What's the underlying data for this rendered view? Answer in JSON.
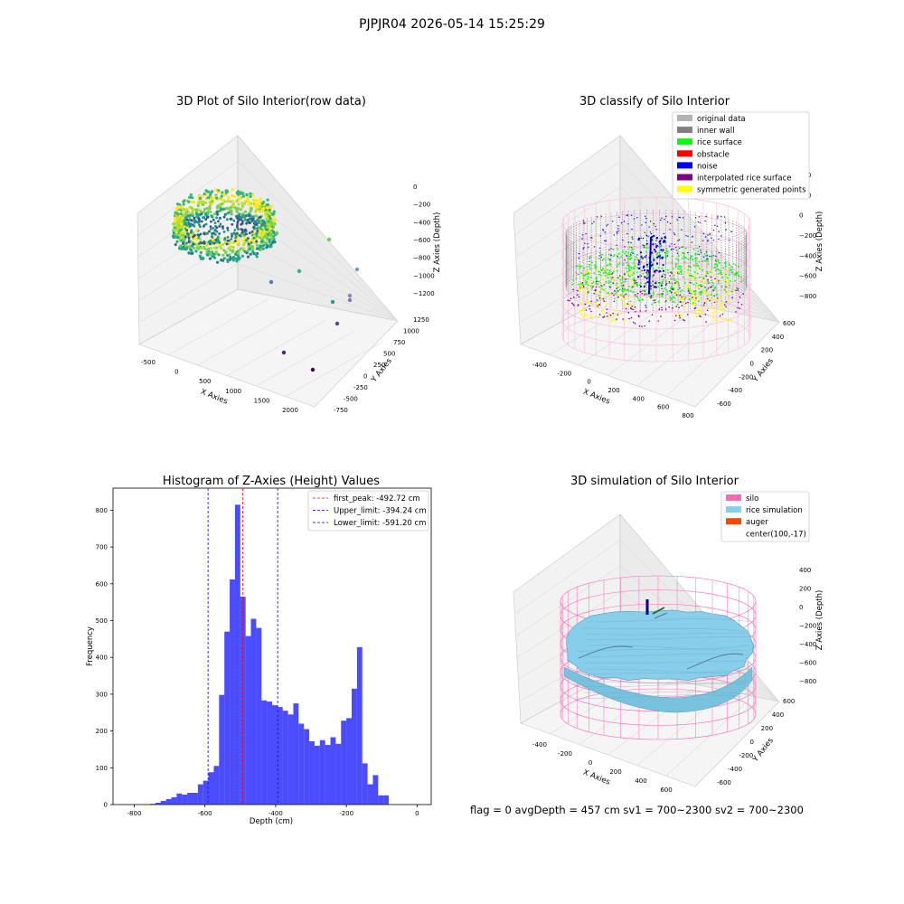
{
  "figure": {
    "suptitle": "PJPJR04 2026-05-14 15:25:29",
    "footer": "flag = 0     avgDepth = 457 cm  sv1 = 700~2300  sv2 = 700~2300"
  },
  "panels": {
    "raw": {
      "title": "3D Plot of Silo Interior(row data)",
      "xlabel": "X Axies",
      "ylabel": "Y Axies",
      "zlabel": "Z Axies (Depth)",
      "xticks": [
        "-500",
        "0",
        "500",
        "1000",
        "1500",
        "2000"
      ],
      "yticks": [
        "-750",
        "-500",
        "-250",
        "0",
        "250",
        "500",
        "750",
        "1000",
        "1250"
      ],
      "zticks": [
        "0",
        "−200",
        "−400",
        "−600",
        "−800",
        "−1000",
        "−1200"
      ]
    },
    "classify": {
      "title": "3D classify of Silo Interior",
      "xlabel": "X Axies",
      "ylabel": "Y Axies",
      "zlabel": "Z Axies (Depth)",
      "xticks": [
        "-400",
        "-200",
        "0",
        "200",
        "400",
        "600",
        "800"
      ],
      "yticks": [
        "-600",
        "-400",
        "-200",
        "0",
        "200",
        "400",
        "600"
      ],
      "zticks": [
        "400",
        "200",
        "0",
        "−200",
        "−400",
        "−600",
        "−800"
      ],
      "legend": [
        {
          "label": "original data",
          "color": "#b3b3b3"
        },
        {
          "label": "inner wall",
          "color": "#808080"
        },
        {
          "label": "rice surface",
          "color": "#00ff00"
        },
        {
          "label": "obstacle",
          "color": "#ff0000"
        },
        {
          "label": "noise",
          "color": "#0000ff"
        },
        {
          "label": "interpolated rice surface",
          "color": "#800080"
        },
        {
          "label": "symmetric generated points",
          "color": "#ffff00"
        }
      ]
    },
    "simulation": {
      "title": "3D simulation of Silo Interior",
      "xlabel": "X Axies",
      "ylabel": "Y Axies",
      "zlabel": "Z Axies (Depth)",
      "xticks": [
        "-400",
        "-200",
        "0",
        "200",
        "400",
        "600"
      ],
      "yticks": [
        "-600",
        "-400",
        "-200",
        "0",
        "200",
        "400",
        "600"
      ],
      "zticks": [
        "400",
        "200",
        "0",
        "−200",
        "−400",
        "−600",
        "−800"
      ],
      "legend": [
        {
          "label": "silo",
          "color": "#ff69b4"
        },
        {
          "label": "rice simulation",
          "color": "#87ceeb"
        },
        {
          "label": "auger",
          "color": "#ff4500"
        },
        {
          "label": "center(100,-17)",
          "color": "none"
        }
      ]
    }
  },
  "chart_data": {
    "type": "bar",
    "title": "Histogram of Z-Axies (Height) Values",
    "xlabel": "Depth (cm)",
    "ylabel": "Frequency",
    "xlim": [
      -860,
      40
    ],
    "ylim": [
      0,
      860
    ],
    "xticks": [
      -800,
      -600,
      -400,
      -200,
      0
    ],
    "yticks": [
      0,
      100,
      200,
      300,
      400,
      500,
      600,
      700,
      800
    ],
    "bar_color": "#0000ff",
    "bins": [
      [
        -755,
        -740,
        2
      ],
      [
        -740,
        -725,
        5
      ],
      [
        -725,
        -710,
        10
      ],
      [
        -710,
        -695,
        15
      ],
      [
        -695,
        -680,
        20
      ],
      [
        -680,
        -665,
        30
      ],
      [
        -665,
        -650,
        27
      ],
      [
        -650,
        -635,
        32
      ],
      [
        -635,
        -620,
        32
      ],
      [
        -620,
        -605,
        55
      ],
      [
        -605,
        -590,
        65
      ],
      [
        -590,
        -575,
        88
      ],
      [
        -575,
        -560,
        105
      ],
      [
        -560,
        -545,
        298
      ],
      [
        -545,
        -530,
        470
      ],
      [
        -530,
        -515,
        612
      ],
      [
        -515,
        -500,
        815
      ],
      [
        -500,
        -485,
        565
      ],
      [
        -485,
        -470,
        458
      ],
      [
        -470,
        -455,
        505
      ],
      [
        -455,
        -440,
        480
      ],
      [
        -440,
        -425,
        283
      ],
      [
        -425,
        -410,
        280
      ],
      [
        -410,
        -395,
        270
      ],
      [
        -395,
        -380,
        265
      ],
      [
        -380,
        -365,
        255
      ],
      [
        -365,
        -350,
        245
      ],
      [
        -350,
        -335,
        275
      ],
      [
        -335,
        -320,
        220
      ],
      [
        -320,
        -305,
        205
      ],
      [
        -305,
        -290,
        172
      ],
      [
        -290,
        -275,
        160
      ],
      [
        -275,
        -260,
        175
      ],
      [
        -260,
        -245,
        162
      ],
      [
        -245,
        -230,
        183
      ],
      [
        -230,
        -215,
        165
      ],
      [
        -215,
        -200,
        228
      ],
      [
        -200,
        -185,
        235
      ],
      [
        -185,
        -170,
        315
      ],
      [
        -170,
        -155,
        428
      ],
      [
        -155,
        -140,
        112
      ],
      [
        -140,
        -125,
        55
      ],
      [
        -125,
        -110,
        80
      ],
      [
        -110,
        -95,
        25
      ],
      [
        -95,
        -80,
        25
      ]
    ],
    "vlines": [
      {
        "label": "first_peak: -492.72 cm",
        "x": -492.72,
        "color": "#ff0000"
      },
      {
        "label": "Upper_limit: -394.24 cm",
        "x": -394.24,
        "color": "#0000ff"
      },
      {
        "label": "Lower_limit: -591.20 cm",
        "x": -591.2,
        "color": "#0000ff"
      }
    ]
  }
}
